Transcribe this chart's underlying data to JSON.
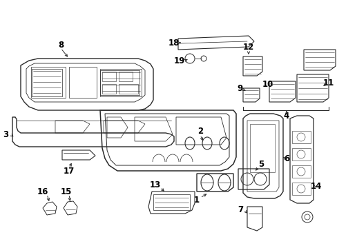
{
  "bg_color": "#ffffff",
  "lc": "#2a2a2a",
  "lw": 0.9,
  "label_color": "#000000",
  "figsize": [
    4.89,
    3.6
  ],
  "dpi": 100
}
